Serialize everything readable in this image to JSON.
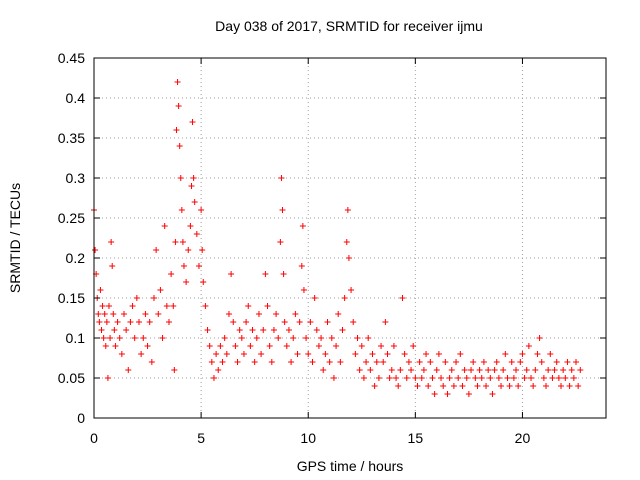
{
  "chart_data": {
    "type": "scatter",
    "title": "Day 038 of 2017, SRMTID for receiver ijmu",
    "xlabel": "GPS time / hours",
    "ylabel": "SRMTID / TECUs",
    "xlim": [
      0,
      23.9
    ],
    "ylim": [
      0,
      0.45
    ],
    "xticks": [
      0,
      5,
      10,
      15,
      20
    ],
    "xtick_labels": [
      "0",
      "5",
      "10",
      "15",
      "20"
    ],
    "yticks": [
      0,
      0.05,
      0.1,
      0.15,
      0.2,
      0.25,
      0.3,
      0.35,
      0.4,
      0.45
    ],
    "ytick_labels": [
      "0",
      "0.05",
      "0.1",
      "0.15",
      "0.2",
      "0.25",
      "0.3",
      "0.35",
      "0.4",
      "0.45"
    ],
    "grid": true,
    "marker": "plus",
    "color": "#ff0000",
    "series": [
      {
        "name": "SRMTID",
        "points": [
          [
            0.0,
            0.26
          ],
          [
            0.05,
            0.21
          ],
          [
            0.1,
            0.18
          ],
          [
            0.15,
            0.15
          ],
          [
            0.2,
            0.13
          ],
          [
            0.25,
            0.12
          ],
          [
            0.3,
            0.16
          ],
          [
            0.35,
            0.11
          ],
          [
            0.4,
            0.14
          ],
          [
            0.45,
            0.1
          ],
          [
            0.5,
            0.13
          ],
          [
            0.55,
            0.09
          ],
          [
            0.6,
            0.12
          ],
          [
            0.65,
            0.05
          ],
          [
            0.7,
            0.14
          ],
          [
            0.75,
            0.1
          ],
          [
            0.8,
            0.22
          ],
          [
            0.85,
            0.19
          ],
          [
            0.9,
            0.13
          ],
          [
            0.95,
            0.11
          ],
          [
            1.0,
            0.09
          ],
          [
            1.1,
            0.12
          ],
          [
            1.2,
            0.1
          ],
          [
            1.3,
            0.08
          ],
          [
            1.4,
            0.13
          ],
          [
            1.5,
            0.11
          ],
          [
            1.6,
            0.06
          ],
          [
            1.7,
            0.12
          ],
          [
            1.8,
            0.14
          ],
          [
            1.9,
            0.1
          ],
          [
            2.0,
            0.15
          ],
          [
            2.1,
            0.12
          ],
          [
            2.2,
            0.08
          ],
          [
            2.3,
            0.1
          ],
          [
            2.4,
            0.13
          ],
          [
            2.5,
            0.09
          ],
          [
            2.6,
            0.12
          ],
          [
            2.7,
            0.07
          ],
          [
            2.8,
            0.15
          ],
          [
            2.9,
            0.21
          ],
          [
            3.0,
            0.13
          ],
          [
            3.1,
            0.16
          ],
          [
            3.2,
            0.1
          ],
          [
            3.3,
            0.24
          ],
          [
            3.4,
            0.14
          ],
          [
            3.5,
            0.12
          ],
          [
            3.6,
            0.18
          ],
          [
            3.7,
            0.14
          ],
          [
            3.75,
            0.06
          ],
          [
            3.8,
            0.22
          ],
          [
            3.85,
            0.36
          ],
          [
            3.9,
            0.42
          ],
          [
            3.95,
            0.39
          ],
          [
            4.0,
            0.34
          ],
          [
            4.05,
            0.3
          ],
          [
            4.1,
            0.26
          ],
          [
            4.15,
            0.22
          ],
          [
            4.2,
            0.19
          ],
          [
            4.3,
            0.17
          ],
          [
            4.4,
            0.21
          ],
          [
            4.5,
            0.24
          ],
          [
            4.55,
            0.29
          ],
          [
            4.6,
            0.37
          ],
          [
            4.65,
            0.3
          ],
          [
            4.7,
            0.27
          ],
          [
            4.8,
            0.23
          ],
          [
            4.9,
            0.19
          ],
          [
            5.0,
            0.26
          ],
          [
            5.05,
            0.21
          ],
          [
            5.1,
            0.17
          ],
          [
            5.2,
            0.14
          ],
          [
            5.3,
            0.11
          ],
          [
            5.4,
            0.09
          ],
          [
            5.5,
            0.07
          ],
          [
            5.6,
            0.05
          ],
          [
            5.7,
            0.08
          ],
          [
            5.8,
            0.06
          ],
          [
            5.9,
            0.09
          ],
          [
            6.0,
            0.07
          ],
          [
            6.1,
            0.1
          ],
          [
            6.2,
            0.08
          ],
          [
            6.3,
            0.13
          ],
          [
            6.4,
            0.18
          ],
          [
            6.5,
            0.12
          ],
          [
            6.6,
            0.09
          ],
          [
            6.7,
            0.07
          ],
          [
            6.8,
            0.11
          ],
          [
            6.9,
            0.1
          ],
          [
            7.0,
            0.08
          ],
          [
            7.1,
            0.12
          ],
          [
            7.2,
            0.14
          ],
          [
            7.3,
            0.09
          ],
          [
            7.4,
            0.11
          ],
          [
            7.5,
            0.07
          ],
          [
            7.6,
            0.1
          ],
          [
            7.7,
            0.13
          ],
          [
            7.8,
            0.08
          ],
          [
            7.9,
            0.11
          ],
          [
            8.0,
            0.18
          ],
          [
            8.1,
            0.14
          ],
          [
            8.2,
            0.09
          ],
          [
            8.3,
            0.07
          ],
          [
            8.4,
            0.11
          ],
          [
            8.5,
            0.13
          ],
          [
            8.6,
            0.1
          ],
          [
            8.7,
            0.22
          ],
          [
            8.75,
            0.3
          ],
          [
            8.8,
            0.26
          ],
          [
            8.85,
            0.18
          ],
          [
            8.9,
            0.12
          ],
          [
            9.0,
            0.09
          ],
          [
            9.1,
            0.11
          ],
          [
            9.2,
            0.07
          ],
          [
            9.3,
            0.1
          ],
          [
            9.4,
            0.13
          ],
          [
            9.5,
            0.08
          ],
          [
            9.6,
            0.12
          ],
          [
            9.7,
            0.19
          ],
          [
            9.75,
            0.24
          ],
          [
            9.8,
            0.16
          ],
          [
            9.9,
            0.1
          ],
          [
            10.0,
            0.08
          ],
          [
            10.1,
            0.12
          ],
          [
            10.2,
            0.07
          ],
          [
            10.3,
            0.15
          ],
          [
            10.4,
            0.11
          ],
          [
            10.5,
            0.09
          ],
          [
            10.6,
            0.1
          ],
          [
            10.7,
            0.06
          ],
          [
            10.8,
            0.08
          ],
          [
            10.9,
            0.12
          ],
          [
            11.0,
            0.07
          ],
          [
            11.1,
            0.1
          ],
          [
            11.2,
            0.05
          ],
          [
            11.3,
            0.09
          ],
          [
            11.4,
            0.13
          ],
          [
            11.5,
            0.07
          ],
          [
            11.6,
            0.11
          ],
          [
            11.7,
            0.15
          ],
          [
            11.8,
            0.22
          ],
          [
            11.85,
            0.26
          ],
          [
            11.9,
            0.2
          ],
          [
            12.0,
            0.16
          ],
          [
            12.1,
            0.12
          ],
          [
            12.2,
            0.08
          ],
          [
            12.3,
            0.1
          ],
          [
            12.4,
            0.06
          ],
          [
            12.5,
            0.09
          ],
          [
            12.6,
            0.05
          ],
          [
            12.7,
            0.07
          ],
          [
            12.8,
            0.1
          ],
          [
            12.9,
            0.06
          ],
          [
            13.0,
            0.08
          ],
          [
            13.1,
            0.04
          ],
          [
            13.2,
            0.07
          ],
          [
            13.3,
            0.05
          ],
          [
            13.4,
            0.09
          ],
          [
            13.5,
            0.07
          ],
          [
            13.6,
            0.12
          ],
          [
            13.7,
            0.08
          ],
          [
            13.8,
            0.05
          ],
          [
            13.9,
            0.06
          ],
          [
            14.0,
            0.09
          ],
          [
            14.1,
            0.05
          ],
          [
            14.2,
            0.04
          ],
          [
            14.3,
            0.06
          ],
          [
            14.4,
            0.15
          ],
          [
            14.5,
            0.08
          ],
          [
            14.6,
            0.05
          ],
          [
            14.7,
            0.07
          ],
          [
            14.8,
            0.06
          ],
          [
            14.9,
            0.09
          ],
          [
            15.0,
            0.05
          ],
          [
            15.1,
            0.04
          ],
          [
            15.2,
            0.07
          ],
          [
            15.3,
            0.05
          ],
          [
            15.4,
            0.06
          ],
          [
            15.5,
            0.08
          ],
          [
            15.6,
            0.04
          ],
          [
            15.7,
            0.07
          ],
          [
            15.8,
            0.05
          ],
          [
            15.9,
            0.03
          ],
          [
            16.0,
            0.06
          ],
          [
            16.1,
            0.08
          ],
          [
            16.2,
            0.05
          ],
          [
            16.3,
            0.04
          ],
          [
            16.4,
            0.07
          ],
          [
            16.5,
            0.03
          ],
          [
            16.6,
            0.05
          ],
          [
            16.7,
            0.06
          ],
          [
            16.8,
            0.04
          ],
          [
            16.9,
            0.07
          ],
          [
            17.0,
            0.05
          ],
          [
            17.1,
            0.08
          ],
          [
            17.2,
            0.04
          ],
          [
            17.3,
            0.06
          ],
          [
            17.4,
            0.05
          ],
          [
            17.5,
            0.03
          ],
          [
            17.6,
            0.06
          ],
          [
            17.7,
            0.07
          ],
          [
            17.8,
            0.05
          ],
          [
            17.9,
            0.04
          ],
          [
            18.0,
            0.06
          ],
          [
            18.1,
            0.05
          ],
          [
            18.2,
            0.07
          ],
          [
            18.3,
            0.04
          ],
          [
            18.4,
            0.06
          ],
          [
            18.5,
            0.05
          ],
          [
            18.6,
            0.03
          ],
          [
            18.7,
            0.06
          ],
          [
            18.8,
            0.07
          ],
          [
            18.9,
            0.05
          ],
          [
            19.0,
            0.04
          ],
          [
            19.1,
            0.06
          ],
          [
            19.2,
            0.08
          ],
          [
            19.3,
            0.05
          ],
          [
            19.4,
            0.04
          ],
          [
            19.5,
            0.07
          ],
          [
            19.6,
            0.05
          ],
          [
            19.7,
            0.06
          ],
          [
            19.8,
            0.04
          ],
          [
            19.9,
            0.07
          ],
          [
            20.0,
            0.08
          ],
          [
            20.1,
            0.05
          ],
          [
            20.2,
            0.06
          ],
          [
            20.3,
            0.09
          ],
          [
            20.4,
            0.05
          ],
          [
            20.5,
            0.04
          ],
          [
            20.6,
            0.06
          ],
          [
            20.7,
            0.08
          ],
          [
            20.8,
            0.1
          ],
          [
            20.9,
            0.07
          ],
          [
            21.0,
            0.05
          ],
          [
            21.1,
            0.04
          ],
          [
            21.2,
            0.06
          ],
          [
            21.3,
            0.08
          ],
          [
            21.4,
            0.05
          ],
          [
            21.5,
            0.06
          ],
          [
            21.6,
            0.07
          ],
          [
            21.7,
            0.05
          ],
          [
            21.8,
            0.04
          ],
          [
            21.9,
            0.06
          ],
          [
            22.0,
            0.05
          ],
          [
            22.1,
            0.07
          ],
          [
            22.2,
            0.04
          ],
          [
            22.3,
            0.06
          ],
          [
            22.4,
            0.05
          ],
          [
            22.5,
            0.07
          ],
          [
            22.6,
            0.04
          ],
          [
            22.7,
            0.06
          ]
        ]
      }
    ]
  }
}
